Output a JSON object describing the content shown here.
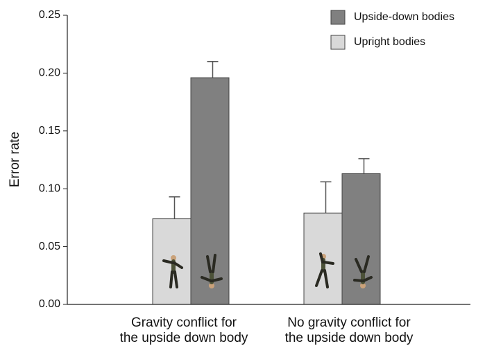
{
  "chart_data": {
    "type": "bar",
    "y_label": "Error rate",
    "categories": [
      [
        "Gravity conflict for",
        "the upside down body"
      ],
      [
        "No gravity conflict for",
        "the upside down body"
      ]
    ],
    "series": [
      {
        "name": "Upright bodies",
        "color": "#d9d9d9",
        "values": [
          0.074,
          0.079
        ],
        "errors": [
          0.019,
          0.027
        ]
      },
      {
        "name": "Upside-down bodies",
        "color": "#808080",
        "values": [
          0.196,
          0.113
        ],
        "errors": [
          0.014,
          0.013
        ]
      }
    ],
    "ylim": [
      0,
      0.25
    ],
    "yticks": [
      {
        "value": 0,
        "label": "0.00"
      },
      {
        "value": 0.05,
        "label": "0.05"
      },
      {
        "value": 0.1,
        "label": "0.10"
      },
      {
        "value": 0.15,
        "label": "0.15"
      },
      {
        "value": 0.2,
        "label": "0.20"
      },
      {
        "value": 0.25,
        "label": "0.25"
      }
    ],
    "legend": "top-right"
  }
}
